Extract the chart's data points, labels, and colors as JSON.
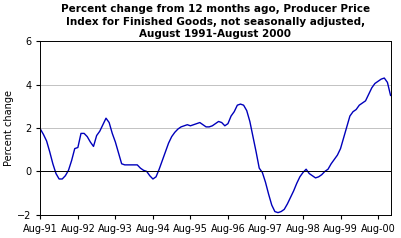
{
  "title": "Percent change from 12 months ago, Producer Price\nIndex for Finished Goods, not seasonally adjusted,\nAugust 1991-August 2000",
  "ylabel": "Percent change",
  "ylim": [
    -2.0,
    6.0
  ],
  "yticks": [
    -2.0,
    0.0,
    2.0,
    4.0,
    6.0
  ],
  "xtick_labels": [
    "Aug-91",
    "Aug-92",
    "Aug-93",
    "Aug-94",
    "Aug-95",
    "Aug-96",
    "Aug-97",
    "Aug-98",
    "Aug-99",
    "Aug-00"
  ],
  "line_color": "#0000bb",
  "background_color": "#ffffff",
  "values": [
    1.95,
    1.7,
    1.4,
    0.9,
    0.35,
    -0.1,
    -0.35,
    -0.35,
    -0.2,
    0.05,
    0.5,
    1.05,
    1.1,
    1.75,
    1.75,
    1.6,
    1.35,
    1.15,
    1.65,
    1.85,
    2.15,
    2.45,
    2.25,
    1.75,
    1.35,
    0.85,
    0.35,
    0.3,
    0.3,
    0.3,
    0.3,
    0.3,
    0.15,
    0.05,
    0.0,
    -0.2,
    -0.35,
    -0.25,
    0.1,
    0.5,
    0.9,
    1.3,
    1.6,
    1.8,
    1.95,
    2.05,
    2.1,
    2.15,
    2.1,
    2.15,
    2.2,
    2.25,
    2.15,
    2.05,
    2.05,
    2.1,
    2.2,
    2.3,
    2.25,
    2.1,
    2.2,
    2.55,
    2.75,
    3.05,
    3.1,
    3.05,
    2.8,
    2.3,
    1.6,
    0.9,
    0.15,
    -0.05,
    -0.5,
    -1.05,
    -1.55,
    -1.85,
    -1.9,
    -1.85,
    -1.75,
    -1.5,
    -1.2,
    -0.9,
    -0.55,
    -0.25,
    -0.05,
    0.1,
    -0.1,
    -0.2,
    -0.3,
    -0.25,
    -0.15,
    0.0,
    0.1,
    0.35,
    0.55,
    0.75,
    1.05,
    1.55,
    2.05,
    2.55,
    2.75,
    2.85,
    3.05,
    3.15,
    3.25,
    3.55,
    3.85,
    4.05,
    4.15,
    4.25,
    4.3,
    4.1,
    3.5
  ]
}
